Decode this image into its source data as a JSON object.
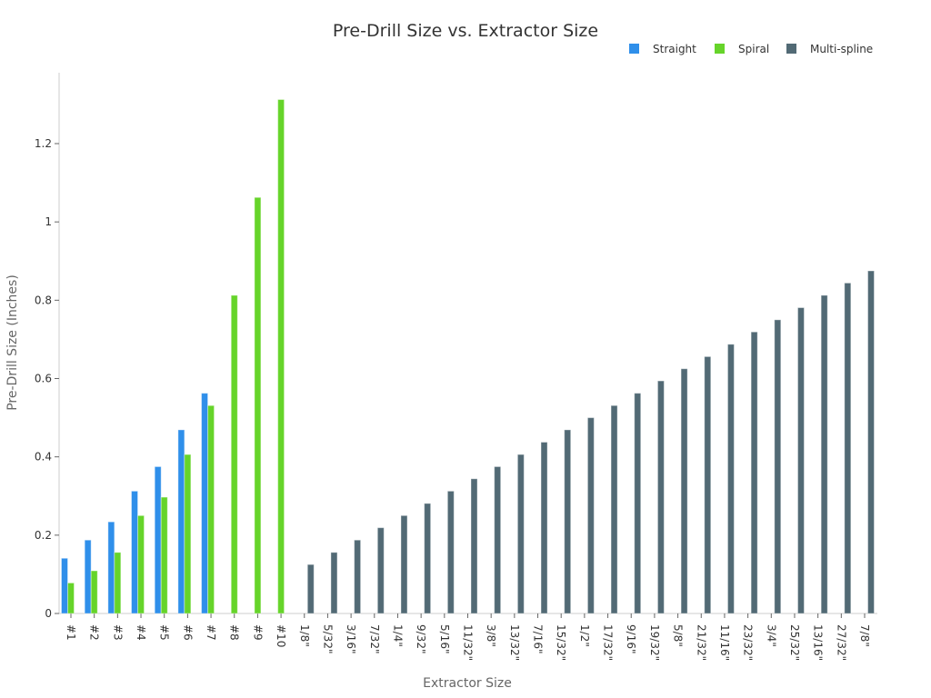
{
  "chart_data": {
    "type": "bar",
    "title": "Pre-Drill Size vs. Extractor Size",
    "xlabel": "Extractor Size",
    "ylabel": "Pre-Drill Size (Inches)",
    "ylim": [
      0,
      1.38
    ],
    "yticks": [
      0,
      0.2,
      0.4,
      0.6,
      0.8,
      1,
      1.2
    ],
    "ytick_labels": [
      "0",
      "0.2",
      "0.4",
      "0.6",
      "0.8",
      "1",
      "1.2"
    ],
    "grid": false,
    "legend_position": "top-right",
    "categories": [
      "#1",
      "#2",
      "#3",
      "#4",
      "#5",
      "#6",
      "#7",
      "#8",
      "#9",
      "#10",
      "1/8\"",
      "5/32\"",
      "3/16\"",
      "7/32\"",
      "1/4\"",
      "9/32\"",
      "5/16\"",
      "11/32\"",
      "3/8\"",
      "13/32\"",
      "7/16\"",
      "15/32\"",
      "1/2\"",
      "17/32\"",
      "9/16\"",
      "19/32\"",
      "5/8\"",
      "21/32\"",
      "11/16\"",
      "23/32\"",
      "3/4\"",
      "25/32\"",
      "13/16\"",
      "27/32\"",
      "7/8\""
    ],
    "series": [
      {
        "name": "Straight",
        "color": "#2f8fea",
        "values": [
          0.141,
          0.1875,
          0.234,
          0.3125,
          0.375,
          0.469,
          0.5625,
          null,
          null,
          null,
          null,
          null,
          null,
          null,
          null,
          null,
          null,
          null,
          null,
          null,
          null,
          null,
          null,
          null,
          null,
          null,
          null,
          null,
          null,
          null,
          null,
          null,
          null,
          null,
          null
        ]
      },
      {
        "name": "Spiral",
        "color": "#66d42a",
        "values": [
          0.078,
          0.109,
          0.156,
          0.25,
          0.297,
          0.406,
          0.531,
          0.8125,
          1.0625,
          1.3125,
          null,
          null,
          null,
          null,
          null,
          null,
          null,
          null,
          null,
          null,
          null,
          null,
          null,
          null,
          null,
          null,
          null,
          null,
          null,
          null,
          null,
          null,
          null,
          null,
          null
        ]
      },
      {
        "name": "Multi-spline",
        "color": "#526a75",
        "values": [
          null,
          null,
          null,
          null,
          null,
          null,
          null,
          null,
          null,
          null,
          0.125,
          0.156,
          0.1875,
          0.219,
          0.25,
          0.281,
          0.3125,
          0.344,
          0.375,
          0.406,
          0.4375,
          0.469,
          0.5,
          0.531,
          0.5625,
          0.594,
          0.625,
          0.656,
          0.6875,
          0.719,
          0.75,
          0.781,
          0.8125,
          0.844,
          0.875
        ]
      }
    ]
  }
}
